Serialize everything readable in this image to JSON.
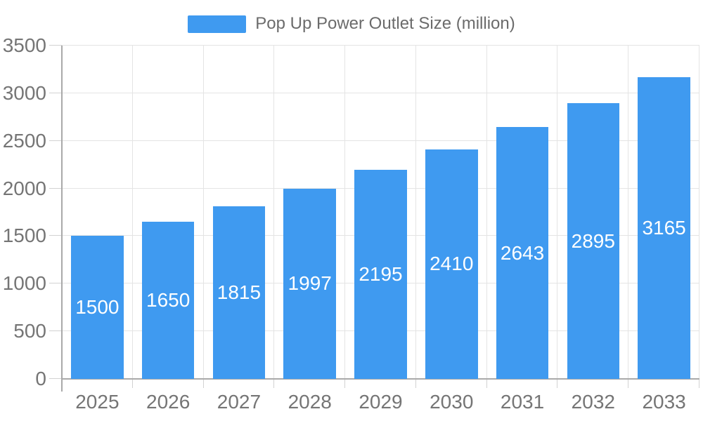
{
  "chart_data": {
    "type": "bar",
    "title": "Pop Up Power Outlet Size (million)",
    "legend": {
      "label": "Pop Up Power Outlet Size (million)",
      "position": "top-center"
    },
    "categories": [
      "2025",
      "2026",
      "2027",
      "2028",
      "2029",
      "2030",
      "2031",
      "2032",
      "2033"
    ],
    "series": [
      {
        "name": "Pop Up Power Outlet Size (million)",
        "values": [
          1500,
          1650,
          1815,
          1997,
          2195,
          2410,
          2643,
          2895,
          3165
        ]
      }
    ],
    "bar_value_labels": [
      "1500",
      "1650",
      "1815",
      "1997",
      "2195",
      "2410",
      "2643",
      "2895",
      "3165"
    ],
    "xlabel": "",
    "ylabel": "",
    "ylim": [
      0,
      3500
    ],
    "yticks": [
      0,
      500,
      1000,
      1500,
      2000,
      2500,
      3000,
      3500
    ],
    "ytick_labels": [
      "0",
      "500",
      "1000",
      "1500",
      "2000",
      "2500",
      "3000",
      "3500"
    ],
    "grid": true,
    "value_labels_inside_bars": true,
    "colors": {
      "bar": "#3f9af0",
      "bar_label_text": "#ffffff",
      "legend_swatch": "#3f9af0",
      "legend_text": "#6b6b6b",
      "axis_text": "#757575",
      "gridline": "#e4e4e4",
      "axis_line": "#a9a9a9",
      "tick": "#d2d2d2",
      "background": "#ffffff"
    }
  }
}
